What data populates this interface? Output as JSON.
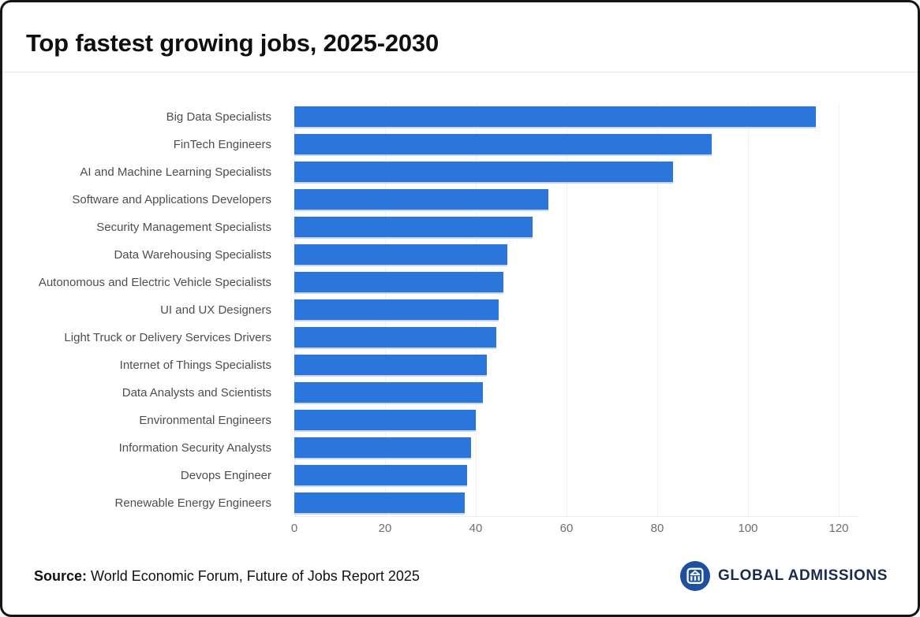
{
  "header": {
    "title": "Top fastest growing jobs, 2025-2030"
  },
  "chart_data": {
    "type": "bar",
    "orientation": "horizontal",
    "title": "Top fastest growing jobs, 2025-2030",
    "categories": [
      "Big Data Specialists",
      "FinTech Engineers",
      "AI and Machine Learning Specialists",
      "Software and Applications Developers",
      "Security Management Specialists",
      "Data Warehousing Specialists",
      "Autonomous and Electric Vehicle Specialists",
      "UI and UX Designers",
      "Light Truck or Delivery Services Drivers",
      "Internet of Things Specialists",
      "Data Analysts and Scientists",
      "Environmental Engineers",
      "Information Security Analysts",
      "Devops Engineer",
      "Renewable Energy Engineers"
    ],
    "values": [
      115,
      92,
      83.5,
      56,
      52.5,
      47,
      46,
      45,
      44.5,
      42.5,
      41.5,
      40,
      39,
      38,
      37.5
    ],
    "xlabel": "",
    "ylabel": "",
    "x_ticks": [
      0,
      20,
      40,
      60,
      80,
      100,
      120
    ],
    "xlim": [
      0,
      124
    ],
    "grid": true,
    "legend": false,
    "bar_color": "#2a76dc",
    "bar_edge_color": "#c7d8f4",
    "gridline_color": "#f0f0f1",
    "label_color": "#4e4e4e",
    "tick_color": "#6f6f6f"
  },
  "footer": {
    "source_label": "Source:",
    "source_text": " World Economic Forum, Future of Jobs Report 2025",
    "logo": {
      "text": "GLOBAL ADMISSIONS",
      "icon": "building-icon",
      "circle_color": "#1e4fa1",
      "text_color": "#1b2b50"
    }
  }
}
